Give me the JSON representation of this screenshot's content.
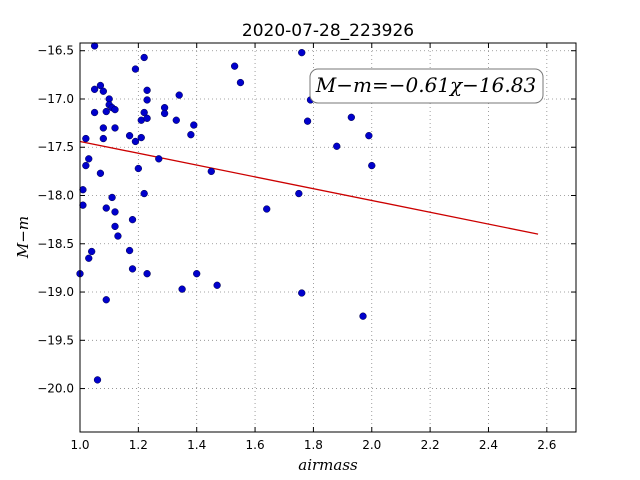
{
  "chart_data": {
    "type": "scatter",
    "title": "2020-07-28_223926",
    "xlabel": "airmass",
    "ylabel": "M−m",
    "xlim": [
      1.0,
      2.7
    ],
    "ylim": [
      -20.45,
      -16.42
    ],
    "y_inverted": true,
    "grid": true,
    "x_ticks": [
      1.0,
      1.2,
      1.4,
      1.6,
      1.8,
      2.0,
      2.2,
      2.4,
      2.6
    ],
    "x_tick_labels": [
      "1.0",
      "1.2",
      "1.4",
      "1.6",
      "1.8",
      "2.0",
      "2.2",
      "2.4",
      "2.6"
    ],
    "y_ticks": [
      -16.5,
      -17.0,
      -17.5,
      -18.0,
      -18.5,
      -19.0,
      -19.5,
      -20.0
    ],
    "y_tick_labels": [
      "−16.5",
      "−17.0",
      "−17.5",
      "−18.0",
      "−18.5",
      "−19.0",
      "−19.5",
      "−20.0"
    ],
    "annotation": "M−m=−0.61χ−16.83",
    "colors": {
      "points": "#0000cc",
      "fit": "#cc0000",
      "grid": "#888888"
    },
    "series": [
      {
        "type": "scatter",
        "points": [
          [
            1.0,
            -18.81
          ],
          [
            1.01,
            -17.94
          ],
          [
            1.01,
            -18.1
          ],
          [
            1.02,
            -17.69
          ],
          [
            1.02,
            -17.41
          ],
          [
            1.03,
            -17.62
          ],
          [
            1.03,
            -18.65
          ],
          [
            1.04,
            -18.58
          ],
          [
            1.05,
            -16.45
          ],
          [
            1.05,
            -16.9
          ],
          [
            1.05,
            -17.14
          ],
          [
            1.06,
            -19.91
          ],
          [
            1.07,
            -16.86
          ],
          [
            1.07,
            -17.77
          ],
          [
            1.08,
            -16.92
          ],
          [
            1.08,
            -17.3
          ],
          [
            1.08,
            -17.41
          ],
          [
            1.09,
            -17.13
          ],
          [
            1.09,
            -18.13
          ],
          [
            1.09,
            -19.08
          ],
          [
            1.1,
            -17.0
          ],
          [
            1.1,
            -17.06
          ],
          [
            1.11,
            -17.09
          ],
          [
            1.11,
            -18.02
          ],
          [
            1.12,
            -17.11
          ],
          [
            1.12,
            -17.3
          ],
          [
            1.12,
            -18.17
          ],
          [
            1.12,
            -18.32
          ],
          [
            1.13,
            -18.42
          ],
          [
            1.17,
            -17.38
          ],
          [
            1.17,
            -18.57
          ],
          [
            1.18,
            -18.25
          ],
          [
            1.18,
            -18.76
          ],
          [
            1.19,
            -17.44
          ],
          [
            1.19,
            -16.69
          ],
          [
            1.2,
            -17.72
          ],
          [
            1.21,
            -17.22
          ],
          [
            1.21,
            -17.4
          ],
          [
            1.22,
            -17.98
          ],
          [
            1.22,
            -16.57
          ],
          [
            1.22,
            -17.14
          ],
          [
            1.23,
            -17.2
          ],
          [
            1.23,
            -16.91
          ],
          [
            1.23,
            -17.01
          ],
          [
            1.23,
            -18.81
          ],
          [
            1.27,
            -17.62
          ],
          [
            1.29,
            -17.09
          ],
          [
            1.29,
            -17.15
          ],
          [
            1.33,
            -17.22
          ],
          [
            1.34,
            -16.96
          ],
          [
            1.35,
            -18.97
          ],
          [
            1.38,
            -17.37
          ],
          [
            1.39,
            -17.27
          ],
          [
            1.4,
            -18.81
          ],
          [
            1.45,
            -17.75
          ],
          [
            1.47,
            -18.93
          ],
          [
            1.53,
            -16.66
          ],
          [
            1.55,
            -16.83
          ],
          [
            1.64,
            -18.14
          ],
          [
            1.75,
            -17.98
          ],
          [
            1.76,
            -16.52
          ],
          [
            1.76,
            -19.01
          ],
          [
            1.78,
            -17.23
          ],
          [
            1.79,
            -17.01
          ],
          [
            1.88,
            -17.49
          ],
          [
            1.93,
            -17.19
          ],
          [
            1.97,
            -19.25
          ],
          [
            1.99,
            -17.38
          ],
          [
            2.0,
            -17.69
          ]
        ]
      },
      {
        "type": "line",
        "name": "fit",
        "x": [
          1.0,
          2.57
        ],
        "y": [
          -17.44,
          -18.4
        ]
      }
    ]
  }
}
